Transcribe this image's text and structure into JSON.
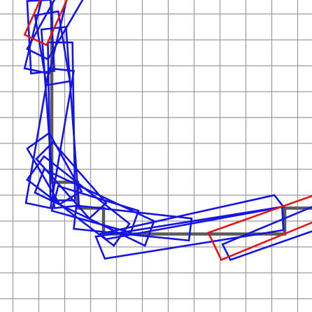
{
  "diagram": {
    "kind": "grid-path-planning",
    "colors": {
      "background": "#ffffff",
      "grid": "#9a9a9a",
      "reference_path": "#5a5a5a",
      "swept_rectangles": "#1414e6",
      "start_end_rectangles": "#e61414"
    },
    "grid": {
      "cell_count": 12,
      "visible": true
    },
    "reference_path": [
      [
        1.5,
        0.5
      ],
      [
        1.5,
        7.5
      ],
      [
        2.5,
        7.5
      ],
      [
        2.5,
        8.5
      ],
      [
        3.5,
        8.5
      ],
      [
        3.5,
        9.5
      ],
      [
        10.5,
        9.5
      ],
      [
        10.5,
        8.5
      ],
      [
        12.2,
        8.5
      ]
    ],
    "rectangles": [
      {
        "role": "start",
        "corners": [
          [
            0.45,
            1.8
          ],
          [
            1.3,
            2.2
          ],
          [
            2.2,
            0.2
          ],
          [
            1.35,
            -0.2
          ]
        ]
      },
      {
        "role": "intermediate",
        "corners": [
          [
            0.55,
            2.35
          ],
          [
            1.35,
            2.75
          ],
          [
            2.9,
            0.1
          ],
          [
            2.05,
            -0.35
          ]
        ]
      },
      {
        "role": "intermediate",
        "corners": [
          [
            0.45,
            3.1
          ],
          [
            1.4,
            3.3
          ],
          [
            2.25,
            -0.3
          ],
          [
            1.35,
            -0.55
          ]
        ]
      },
      {
        "role": "intermediate",
        "corners": [
          [
            0.55,
            0.5
          ],
          [
            1.45,
            0.45
          ],
          [
            1.6,
            3.2
          ],
          [
            0.7,
            3.3
          ]
        ]
      },
      {
        "role": "intermediate",
        "corners": [
          [
            0.85,
            1.05
          ],
          [
            1.75,
            0.9
          ],
          [
            2.2,
            3.6
          ],
          [
            1.3,
            3.75
          ]
        ]
      },
      {
        "role": "intermediate",
        "corners": [
          [
            1.1,
            1.6
          ],
          [
            2.05,
            1.5
          ],
          [
            2.55,
            8.4
          ],
          [
            1.6,
            8.5
          ]
        ]
      },
      {
        "role": "intermediate",
        "corners": [
          [
            1.35,
            2.1
          ],
          [
            2.3,
            2.1
          ],
          [
            2.4,
            8.2
          ],
          [
            1.45,
            8.2
          ]
        ]
      },
      {
        "role": "intermediate",
        "corners": [
          [
            1.4,
            3.1
          ],
          [
            2.35,
            3.2
          ],
          [
            1.45,
            8.5
          ],
          [
            0.5,
            8.3
          ]
        ]
      },
      {
        "role": "intermediate",
        "corners": [
          [
            0.55,
            6.2
          ],
          [
            1.4,
            5.6
          ],
          [
            2.65,
            7.85
          ],
          [
            1.8,
            8.35
          ]
        ]
      },
      {
        "role": "intermediate",
        "corners": [
          [
            0.9,
            6.6
          ],
          [
            1.55,
            5.95
          ],
          [
            3.6,
            8.3
          ],
          [
            2.95,
            8.9
          ]
        ]
      },
      {
        "role": "intermediate",
        "corners": [
          [
            0.55,
            7.4
          ],
          [
            1.2,
            6.5
          ],
          [
            4.5,
            9.1
          ],
          [
            3.9,
            9.95
          ]
        ]
      },
      {
        "role": "intermediate",
        "corners": [
          [
            0.85,
            7.9
          ],
          [
            1.2,
            7.0
          ],
          [
            5.45,
            9.0
          ],
          [
            5.1,
            9.95
          ]
        ]
      },
      {
        "role": "intermediate",
        "corners": [
          [
            1.5,
            8.6
          ],
          [
            1.75,
            7.65
          ],
          [
            4.85,
            8.6
          ],
          [
            4.55,
            9.45
          ]
        ]
      },
      {
        "role": "intermediate",
        "corners": [
          [
            2.35,
            9.3
          ],
          [
            2.45,
            8.4
          ],
          [
            6.9,
            8.9
          ],
          [
            6.8,
            9.75
          ]
        ]
      },
      {
        "role": "intermediate",
        "corners": [
          [
            3.55,
            10.45
          ],
          [
            3.2,
            9.6
          ],
          [
            10.4,
            8.45
          ],
          [
            10.45,
            9.35
          ]
        ]
      },
      {
        "role": "intermediate",
        "corners": [
          [
            3.35,
            9.5
          ],
          [
            3.6,
            9.7
          ],
          [
            10.45,
            8.45
          ],
          [
            10.1,
            8.0
          ]
        ]
      },
      {
        "role": "intermediate",
        "corners": [
          [
            8.1,
            9.9
          ],
          [
            12.4,
            8.1
          ],
          [
            12.4,
            9.1
          ],
          [
            8.4,
            10.5
          ]
        ]
      },
      {
        "role": "end",
        "corners": [
          [
            7.55,
            9.45
          ],
          [
            8.05,
            10.5
          ],
          [
            12.3,
            8.75
          ],
          [
            12.2,
            7.8
          ]
        ]
      }
    ]
  }
}
